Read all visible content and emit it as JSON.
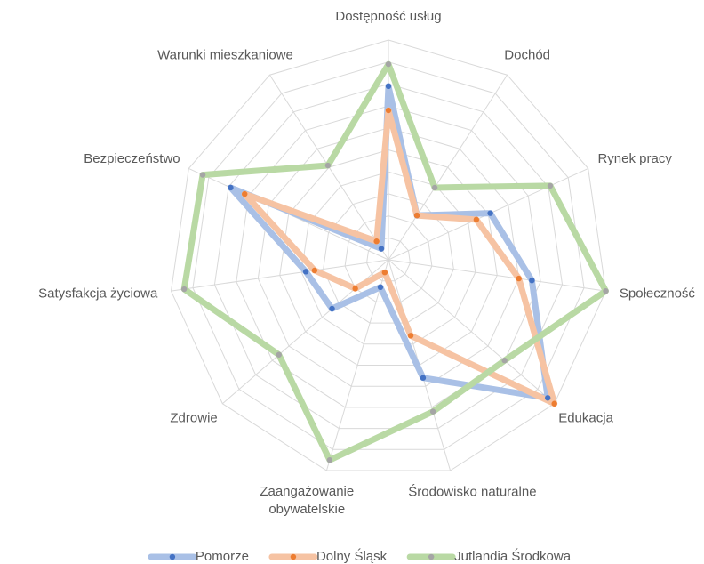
{
  "chart_data": {
    "type": "radar",
    "categories": [
      "Dostępność usług",
      "Dochód",
      "Rynek pracy",
      "Społeczność",
      "Edukacja",
      "Środowisko naturalne",
      "Zaangażowanie obywatelskie",
      "Zdrowie",
      "Satysfakcja życiowa",
      "Bezpieczeństwo",
      "Warunki mieszkaniowe"
    ],
    "series": [
      {
        "name": "Pomorze",
        "color": "#a9c0e6",
        "marker_color": "#4472c4",
        "values": [
          7.9,
          2.4,
          5.1,
          6.6,
          9.6,
          5.6,
          1.3,
          3.4,
          3.8,
          7.9,
          0.6
        ]
      },
      {
        "name": "Dolny Śląsk",
        "color": "#f6c3a3",
        "marker_color": "#ed7d31",
        "values": [
          6.8,
          2.4,
          4.4,
          6.0,
          10,
          3.6,
          0.6,
          2.0,
          3.4,
          7.2,
          1.0
        ]
      },
      {
        "name": "Jutlandia Środkowa",
        "color": "#b9d9a4",
        "marker_color": "#a5a5a5",
        "values": [
          8.9,
          3.9,
          8.1,
          10,
          7.0,
          7.2,
          9.5,
          6.6,
          9.4,
          9.3,
          5.1
        ]
      }
    ],
    "ylim": [
      0,
      10
    ],
    "yticks": [
      1,
      2,
      3,
      4,
      5,
      6,
      7,
      8,
      9,
      10
    ],
    "show_tick_labels": false,
    "grid": true,
    "legend": "bottom"
  }
}
